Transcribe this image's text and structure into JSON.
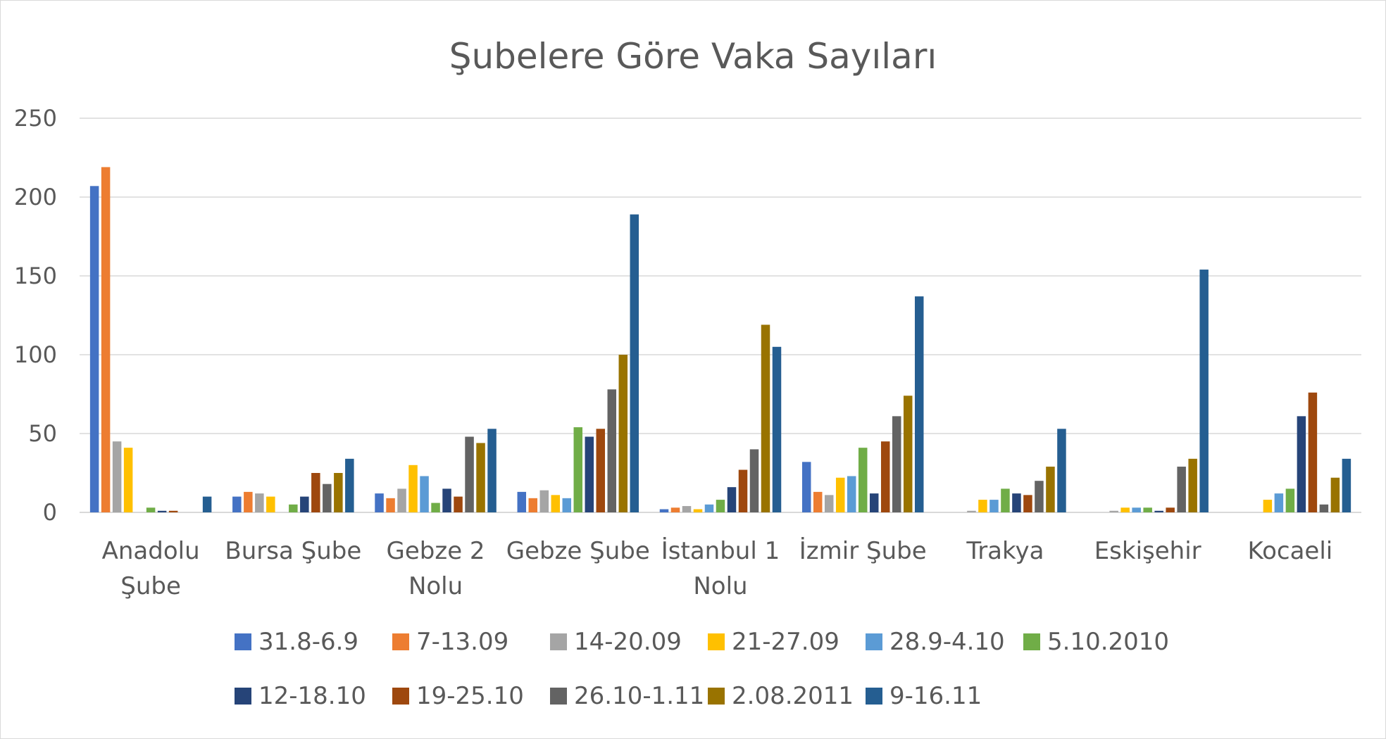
{
  "chart_data": {
    "type": "bar",
    "title": "Şubelere Göre Vaka Sayıları",
    "xlabel": "",
    "ylabel": "",
    "ylim": [
      0,
      250
    ],
    "yticks": [
      0,
      50,
      100,
      150,
      200,
      250
    ],
    "grid": true,
    "legend_position": "bottom",
    "categories": [
      [
        "Anadolu",
        "Şube"
      ],
      [
        "Bursa Şube"
      ],
      [
        "Gebze 2",
        "Nolu"
      ],
      [
        "Gebze Şube"
      ],
      [
        "İstanbul 1",
        "Nolu"
      ],
      [
        "İzmir Şube"
      ],
      [
        "Trakya"
      ],
      [
        "Eskişehir"
      ],
      [
        "Kocaeli"
      ]
    ],
    "series": [
      {
        "name": "31.8-6.9",
        "color": "#4472C4",
        "values": [
          207,
          10,
          12,
          13,
          2,
          32,
          0,
          0,
          0
        ]
      },
      {
        "name": "7-13.09",
        "color": "#ED7D31",
        "values": [
          219,
          13,
          9,
          9,
          3,
          13,
          0,
          0,
          0
        ]
      },
      {
        "name": "14-20.09",
        "color": "#A5A5A5",
        "values": [
          45,
          12,
          15,
          14,
          4,
          11,
          1,
          1,
          0
        ]
      },
      {
        "name": "21-27.09",
        "color": "#FFC000",
        "values": [
          41,
          10,
          30,
          11,
          2,
          22,
          8,
          3,
          8
        ]
      },
      {
        "name": "28.9-4.10",
        "color": "#5B9BD5",
        "values": [
          0,
          0,
          23,
          9,
          5,
          23,
          8,
          3,
          12
        ]
      },
      {
        "name": "5.10.2010",
        "color": "#70AD47",
        "values": [
          3,
          5,
          6,
          54,
          8,
          41,
          15,
          3,
          15
        ]
      },
      {
        "name": "12-18.10",
        "color": "#264478",
        "values": [
          1,
          10,
          15,
          48,
          16,
          12,
          12,
          1,
          61
        ]
      },
      {
        "name": "19-25.10",
        "color": "#9E480E",
        "values": [
          1,
          25,
          10,
          53,
          27,
          45,
          11,
          3,
          76
        ]
      },
      {
        "name": "26.10-1.11",
        "color": "#636363",
        "values": [
          0,
          18,
          48,
          78,
          40,
          61,
          20,
          29,
          5
        ]
      },
      {
        "name": "2.08.2011",
        "color": "#997300",
        "values": [
          0,
          25,
          44,
          100,
          119,
          74,
          29,
          34,
          22
        ]
      },
      {
        "name": "9-16.11",
        "color": "#255E91",
        "values": [
          10,
          34,
          53,
          189,
          105,
          137,
          53,
          154,
          34
        ]
      }
    ]
  }
}
